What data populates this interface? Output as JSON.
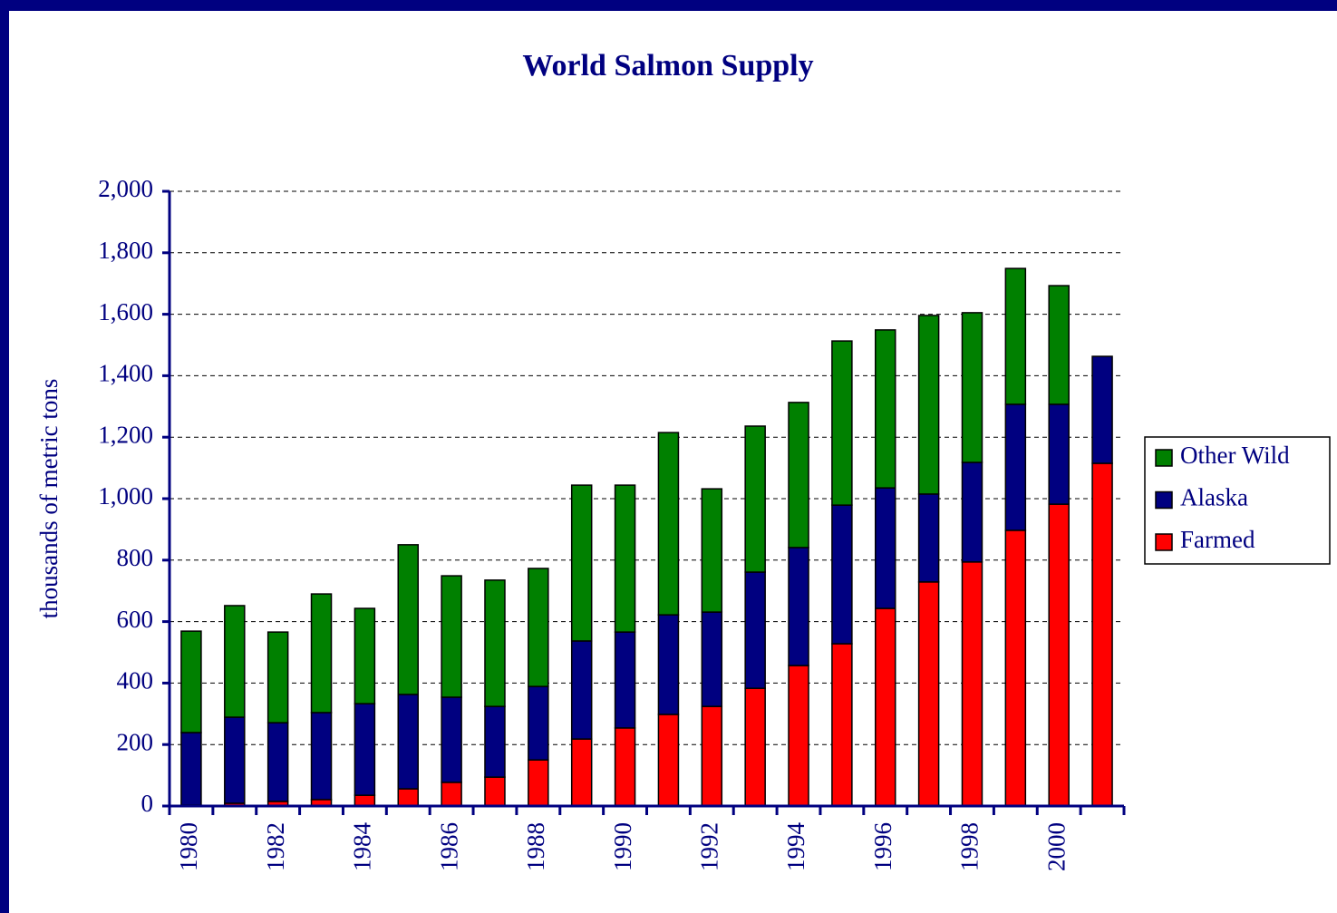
{
  "chart_data": {
    "type": "stacked_bar",
    "title": "World Salmon Supply",
    "y_label": "thousands of metric tons",
    "categories": [
      "1980",
      null,
      "1982",
      null,
      "1984",
      null,
      "1986",
      null,
      "1988",
      null,
      "1990",
      null,
      "1992",
      null,
      "1994",
      null,
      "1996",
      null,
      "1998",
      null,
      "2000",
      null
    ],
    "series": [
      {
        "name": "Farmed",
        "color": "#ff0000",
        "values": [
          3,
          9,
          15,
          21,
          35,
          56,
          77,
          94,
          150,
          218,
          254,
          298,
          324,
          383,
          457,
          528,
          643,
          729,
          794,
          897,
          982,
          1115
        ]
      },
      {
        "name": "Alaska",
        "color": "#000080",
        "values": [
          236,
          280,
          256,
          283,
          298,
          307,
          277,
          230,
          239,
          319,
          312,
          324,
          307,
          378,
          384,
          451,
          392,
          286,
          324,
          410,
          325,
          348
        ]
      },
      {
        "name": "Other Wild",
        "color": "#008000",
        "values": [
          330,
          363,
          295,
          386,
          310,
          487,
          395,
          411,
          384,
          507,
          478,
          593,
          401,
          475,
          472,
          534,
          514,
          581,
          487,
          442,
          386,
          null
        ]
      }
    ],
    "ylim": [
      0,
      2000
    ],
    "yticks": [
      0,
      200,
      400,
      600,
      800,
      {
        "value": 1000,
        "label": "1,000"
      },
      {
        "value": 1200,
        "label": "1,200"
      },
      {
        "value": 1400,
        "label": "1,400"
      },
      {
        "value": 1600,
        "label": "1,600"
      },
      {
        "value": 1800,
        "label": "1,800"
      },
      {
        "value": 2000,
        "label": "2,000"
      }
    ],
    "grid": true,
    "legend": "right"
  }
}
